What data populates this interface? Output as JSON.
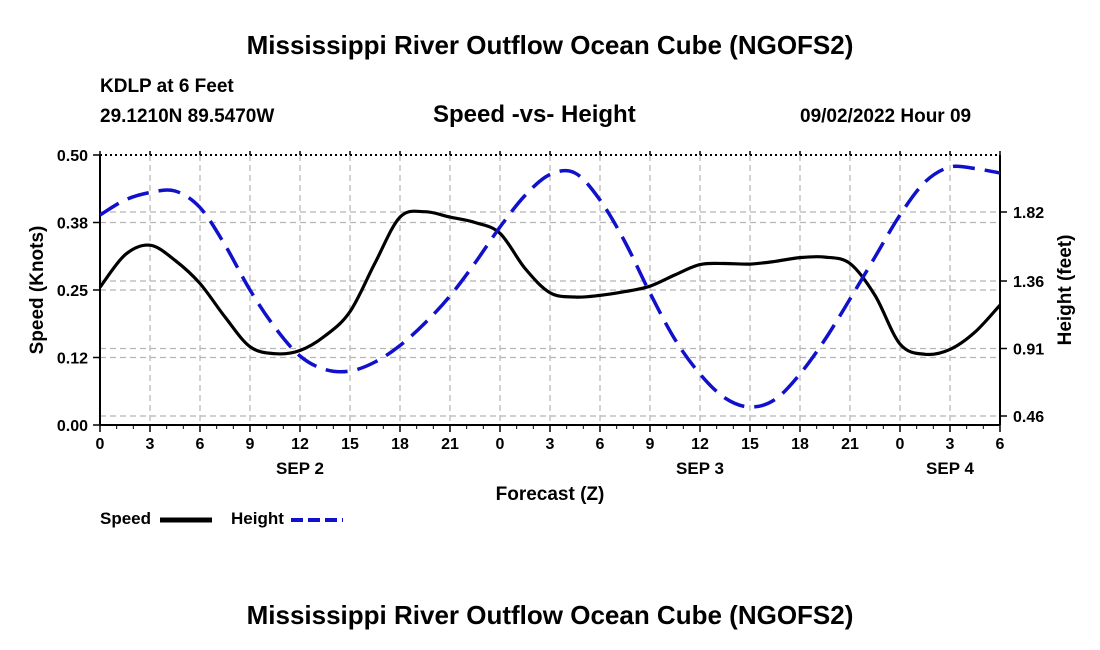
{
  "page": {
    "title": "Mississippi River Outflow Ocean Cube (NGOFS2)",
    "footer_title": "Mississippi River Outflow Ocean Cube (NGOFS2)",
    "station": "KDLP at 6 Feet",
    "coords": "29.1210N  89.5470W",
    "subtitle": "Speed -vs- Height",
    "datetime": "09/02/2022 Hour 09"
  },
  "colors": {
    "speed": "#000000",
    "height": "#1111cc",
    "grid": "#b4b4b4"
  },
  "chart_data": {
    "type": "line",
    "xlabel": "Forecast (Z)",
    "ylabel": "Speed (Knots)",
    "y2label": "Height (feet)",
    "xlim": [
      0,
      54
    ],
    "ylim": [
      0,
      0.5
    ],
    "y2lim": [
      0.4,
      2.2
    ],
    "xticks": [
      0,
      3,
      6,
      9,
      12,
      15,
      18,
      21,
      24,
      27,
      30,
      33,
      36,
      39,
      42,
      45,
      48,
      51,
      54
    ],
    "xtick_labels": [
      "0",
      "3",
      "6",
      "9",
      "12",
      "15",
      "18",
      "21",
      "0",
      "3",
      "6",
      "9",
      "12",
      "15",
      "18",
      "21",
      "0",
      "3",
      "6"
    ],
    "yticks": [
      0.0,
      0.125,
      0.25,
      0.375,
      0.5
    ],
    "ytick_labels": [
      "0.00",
      "0.12",
      "0.25",
      "0.38",
      "0.50"
    ],
    "y2ticks": [
      0.46,
      0.91,
      1.36,
      1.82
    ],
    "y2tick_labels": [
      "0.46",
      "0.91",
      "1.36",
      "1.82"
    ],
    "day_labels": [
      {
        "x": 12,
        "label": "SEP 2"
      },
      {
        "x": 36,
        "label": "SEP 3"
      },
      {
        "x": 51,
        "label": "SEP 4"
      }
    ],
    "series": [
      {
        "name": "Speed",
        "axis": "left",
        "style": "solid",
        "x": [
          0,
          1.5,
          3,
          4.5,
          6,
          7.5,
          9,
          10.5,
          12,
          13.5,
          15,
          16.5,
          18,
          19.5,
          21,
          22.5,
          24,
          25.5,
          27,
          28.5,
          30,
          31.5,
          33,
          34.5,
          36,
          37.5,
          39,
          40.5,
          42,
          43.5,
          45,
          46.5,
          48,
          49.5,
          51,
          52.5,
          54
        ],
        "values": [
          0.255,
          0.315,
          0.333,
          0.305,
          0.262,
          0.2,
          0.145,
          0.132,
          0.138,
          0.165,
          0.21,
          0.3,
          0.385,
          0.395,
          0.385,
          0.375,
          0.355,
          0.29,
          0.245,
          0.237,
          0.24,
          0.247,
          0.257,
          0.278,
          0.297,
          0.299,
          0.298,
          0.303,
          0.31,
          0.311,
          0.299,
          0.24,
          0.15,
          0.131,
          0.14,
          0.172,
          0.222
        ]
      },
      {
        "name": "Height",
        "axis": "right",
        "style": "dashed",
        "x": [
          0,
          1.5,
          3,
          4.5,
          6,
          7.5,
          9,
          10.5,
          12,
          13.5,
          15,
          16.5,
          18,
          19.5,
          21,
          22.5,
          24,
          25.5,
          27,
          28.5,
          30,
          31.5,
          33,
          34.5,
          36,
          37.5,
          39,
          40.5,
          42,
          43.5,
          45,
          46.5,
          48,
          49.5,
          51,
          52.5,
          54
        ],
        "values": [
          1.8,
          1.9,
          1.95,
          1.96,
          1.85,
          1.6,
          1.3,
          1.05,
          0.86,
          0.77,
          0.76,
          0.82,
          0.93,
          1.08,
          1.26,
          1.48,
          1.72,
          1.93,
          2.07,
          2.08,
          1.9,
          1.62,
          1.28,
          0.97,
          0.74,
          0.58,
          0.52,
          0.57,
          0.74,
          0.97,
          1.24,
          1.52,
          1.8,
          2.02,
          2.12,
          2.11,
          2.08
        ]
      }
    ],
    "legend": [
      {
        "label": "Speed",
        "style": "solid"
      },
      {
        "label": "Height",
        "style": "dashed"
      }
    ]
  }
}
